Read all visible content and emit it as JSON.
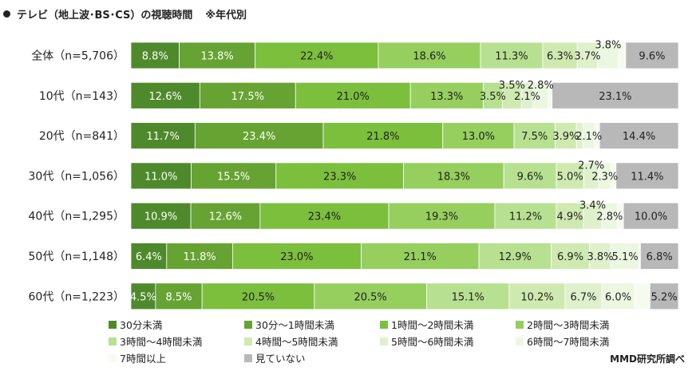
{
  "header": {
    "title": "テレビ（地上波･BS･CS）の視聴時間",
    "note": "※年代別"
  },
  "credit": "MMD研究所調べ",
  "colors": [
    "#4e8a2b",
    "#66a332",
    "#7cbf3d",
    "#96cf5e",
    "#b7e190",
    "#cfeab0",
    "#dff1cc",
    "#ecf7e1",
    "#f6fbf0",
    "#b8b8b8"
  ],
  "chart_data": {
    "type": "bar",
    "orientation": "horizontal",
    "stacked": true,
    "xlim": [
      0,
      100
    ],
    "grid": false,
    "legend_position": "bottom",
    "categories": [
      "全体（n=5,706）",
      "10代（n=143）",
      "20代（n=841）",
      "30代（n=1,056）",
      "40代（n=1,295）",
      "50代（n=1,148）",
      "60代（n=1,223）"
    ],
    "series": [
      {
        "name": "30分未満",
        "values": [
          8.8,
          12.6,
          11.7,
          11.0,
          10.9,
          6.4,
          4.5
        ]
      },
      {
        "name": "30分～1時間未満",
        "values": [
          13.8,
          17.5,
          23.4,
          15.5,
          12.6,
          11.8,
          8.5
        ]
      },
      {
        "name": "1時間～2時間未満",
        "values": [
          22.4,
          21.0,
          21.8,
          23.3,
          23.4,
          23.0,
          20.5
        ]
      },
      {
        "name": "2時間～3時間未満",
        "values": [
          18.6,
          13.3,
          13.0,
          18.3,
          19.3,
          21.1,
          20.5
        ]
      },
      {
        "name": "3時間～4時間未満",
        "values": [
          11.3,
          3.5,
          7.5,
          9.6,
          11.2,
          12.9,
          15.1
        ]
      },
      {
        "name": "4時間～5時間未満",
        "values": [
          6.3,
          3.5,
          3.9,
          5.0,
          4.9,
          6.9,
          10.2
        ]
      },
      {
        "name": "5時間～6時間未満",
        "values": [
          3.7,
          2.1,
          1.2,
          2.7,
          3.4,
          3.8,
          6.7
        ]
      },
      {
        "name": "6時間～7時間未満",
        "values": [
          3.8,
          2.8,
          2.1,
          2.3,
          2.8,
          5.1,
          6.0
        ]
      },
      {
        "name": "7時間以上",
        "values": [
          1.3,
          0.7,
          0.9,
          0.9,
          1.1,
          0.2,
          2.8
        ]
      },
      {
        "name": "見ていない",
        "values": [
          9.6,
          23.1,
          14.4,
          11.4,
          10.0,
          6.8,
          5.2
        ]
      }
    ],
    "data_labels": [
      [
        "8.8%",
        "13.8%",
        "22.4%",
        "18.6%",
        "11.3%",
        "6.3%",
        "3.7%",
        "3.8%",
        "",
        "9.6%"
      ],
      [
        "12.6%",
        "17.5%",
        "21.0%",
        "13.3%",
        "3.5%",
        "3.5%",
        "2.1%",
        "2.8%",
        "",
        "23.1%"
      ],
      [
        "11.7%",
        "23.4%",
        "21.8%",
        "13.0%",
        "7.5%",
        "3.9%",
        "",
        "2.1%",
        "",
        "14.4%"
      ],
      [
        "11.0%",
        "15.5%",
        "23.3%",
        "18.3%",
        "9.6%",
        "5.0%",
        "2.7%",
        "2.3%",
        "",
        "11.4%"
      ],
      [
        "10.9%",
        "12.6%",
        "23.4%",
        "19.3%",
        "11.2%",
        "4.9%",
        "3.4%",
        "2.8%",
        "",
        "10.0%"
      ],
      [
        "6.4%",
        "11.8%",
        "23.0%",
        "21.1%",
        "12.9%",
        "6.9%",
        "3.8%",
        "5.1%",
        "",
        "6.8%"
      ],
      [
        "4.5%",
        "8.5%",
        "20.5%",
        "20.5%",
        "15.1%",
        "10.2%",
        "6.7%",
        "6.0%",
        "",
        "5.2%"
      ]
    ],
    "legend": [
      {
        "label": "30分未満",
        "series": 0
      },
      {
        "label": "30分～1時間未満",
        "series": 1
      },
      {
        "label": "1時間～2時間未満",
        "series": 2
      },
      {
        "label": "2時間～3時間未満",
        "series": 3
      },
      {
        "label": "3時間～4時間未満",
        "series": 4
      },
      {
        "label": "4時間～5時間未満",
        "series": 5
      },
      {
        "label": "5時間～6時間未満",
        "series": 6
      },
      {
        "label": "6時間～7時間未満",
        "series": 7
      },
      {
        "label": "7時間以上",
        "series": 8
      },
      {
        "label": "見ていない",
        "series": 9
      }
    ]
  }
}
